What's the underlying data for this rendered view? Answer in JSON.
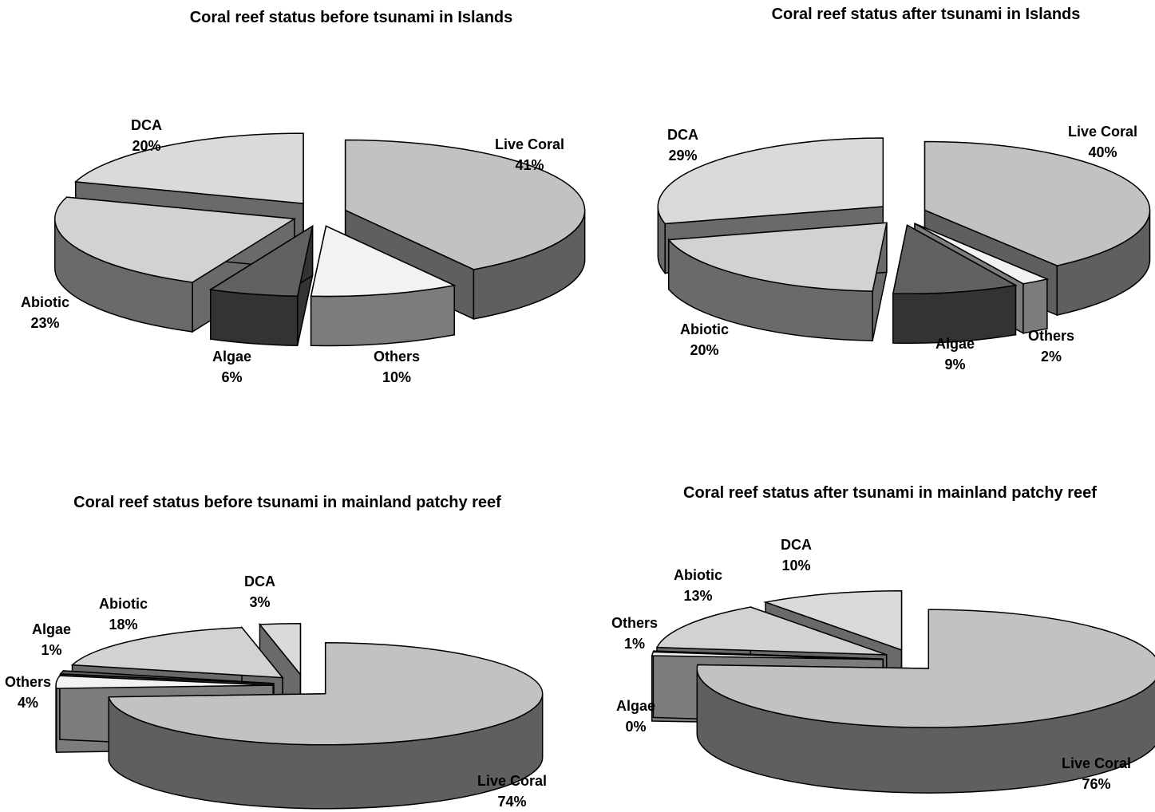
{
  "chart_data": [
    {
      "type": "pie",
      "title": "Coral reef status before tsunami in Islands",
      "categories": [
        "Live Coral",
        "Others",
        "Algae",
        "Abiotic",
        "DCA"
      ],
      "values": [
        41,
        10,
        6,
        23,
        20
      ],
      "labels": [
        "41%",
        "10%",
        "6%",
        "23%",
        "20%"
      ],
      "exploded": true,
      "three_d": true
    },
    {
      "type": "pie",
      "title": "Coral reef status after tsunami in Islands",
      "categories": [
        "Live Coral",
        "Others",
        "Algae",
        "Abiotic",
        "DCA"
      ],
      "values": [
        40,
        2,
        9,
        20,
        29
      ],
      "labels": [
        "40%",
        "2%",
        "9%",
        "20%",
        "29%"
      ],
      "exploded": true,
      "three_d": true
    },
    {
      "type": "pie",
      "title": "Coral reef status before tsunami in mainland patchy reef",
      "categories": [
        "Live Coral",
        "Others",
        "Algae",
        "Abiotic",
        "DCA"
      ],
      "values": [
        74,
        4,
        1,
        18,
        3
      ],
      "labels": [
        "74%",
        "4%",
        "1%",
        "18%",
        "3%"
      ],
      "exploded": true,
      "three_d": true
    },
    {
      "type": "pie",
      "title": "Coral reef status after tsunami in mainland patchy reef",
      "categories": [
        "Live Coral",
        "Others",
        "Algae",
        "Abiotic",
        "DCA"
      ],
      "values": [
        76,
        1,
        0,
        13,
        10
      ],
      "labels": [
        "76%",
        "1%",
        "0%",
        "13%",
        "10%"
      ],
      "exploded": true,
      "three_d": true
    }
  ],
  "colors": {
    "Live Coral": "#c0c0c0",
    "Others": "#f2f2f2",
    "Algae": "#666666",
    "Abiotic": "#d0d0d0",
    "DCA": "#d8d8d8"
  }
}
